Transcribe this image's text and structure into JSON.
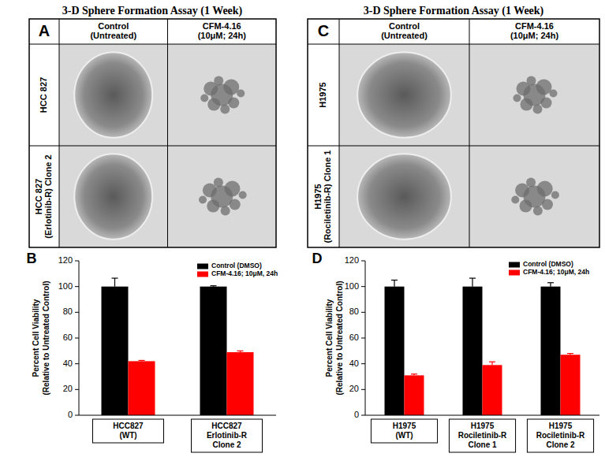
{
  "titles": [
    "3-D Sphere Formation Assay (1 Week)",
    "3-D Sphere Formation Assay (1 Week)"
  ],
  "image_panels": [
    {
      "label": "A",
      "columns": [
        "Control\n(Untreated)",
        "CFM-4.16\n(10μM; 24h)"
      ],
      "rows": [
        "HCC 827",
        "HCC 827\n(Erlotinib-R) Clone 2"
      ]
    },
    {
      "label": "C",
      "columns": [
        "Control\n(Untreated)",
        "CFM-4.16\n(10μM; 24h)"
      ],
      "rows": [
        "H1975",
        "H1975\n(Rociletinib-R) Clone 1"
      ]
    }
  ],
  "chart_data": [
    {
      "type": "bar",
      "title": "B",
      "y_label": "Percent Cell Viability\n(Relative to Untreated Control)",
      "categories": [
        "HCC827\n(WT)",
        "HCC827\nErlotinib-R\nClone 2"
      ],
      "series": [
        {
          "name": "Control (DMSO)",
          "color": "#000000",
          "values": [
            100,
            100
          ],
          "errors": [
            6.5,
            0.6
          ]
        },
        {
          "name": "CFM-4.16; 10μM, 24h",
          "color": "#ff0000",
          "values": [
            42,
            49
          ],
          "errors": [
            0.6,
            1
          ]
        }
      ],
      "ylim": [
        0,
        120
      ],
      "yticks": [
        0,
        20,
        40,
        60,
        80,
        100,
        120
      ],
      "legend": "upper right",
      "grid": false
    },
    {
      "type": "bar",
      "title": "D",
      "y_label": "Percent Cell Viability\n(Relative to Untreated Control)",
      "categories": [
        "H1975\n(WT)",
        "H1975\nRociletinib-R\nClone 1",
        "H1975\nRociletinib-R\nClone 2"
      ],
      "series": [
        {
          "name": "Control (DMSO)",
          "color": "#000000",
          "values": [
            100,
            100,
            100
          ],
          "errors": [
            5,
            6.5,
            3
          ]
        },
        {
          "name": "CFM-4.16; 10μM, 24h",
          "color": "#ff0000",
          "values": [
            31,
            39,
            47
          ],
          "errors": [
            1,
            2.5,
            1
          ]
        }
      ],
      "ylim": [
        0,
        120
      ],
      "yticks": [
        0,
        20,
        40,
        60,
        80,
        100,
        120
      ],
      "legend": "upper right",
      "grid": false
    }
  ]
}
